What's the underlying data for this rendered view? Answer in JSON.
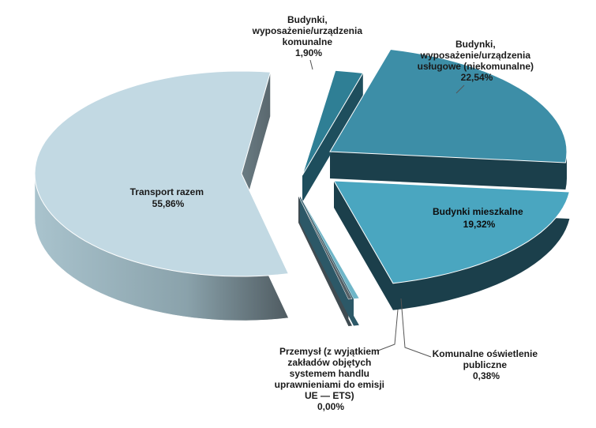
{
  "chart_data": {
    "type": "pie",
    "title": "",
    "legend": "none",
    "slices": [
      {
        "name_lines": [
          "Budynki,",
          "wyposażenie/urządzenia",
          "komunalne"
        ],
        "value": 1.9,
        "value_label": "1,90%",
        "color": "#2f7f95"
      },
      {
        "name_lines": [
          "Budynki,",
          "wyposażenie/urządzenia",
          "usługowe (niekomunalne)"
        ],
        "value": 22.54,
        "value_label": "22,54%",
        "color": "#3d8ea7"
      },
      {
        "name_lines": [
          "Budynki  mieszkalne"
        ],
        "value": 19.32,
        "value_label": "19,32%",
        "color": "#4aa6c0"
      },
      {
        "name_lines": [
          "Komunalne  oświetlenie",
          "publiczne"
        ],
        "value": 0.38,
        "value_label": "0,38%",
        "color": "#6fb6c8"
      },
      {
        "name_lines": [
          "Przemysł (z wyjątkiem",
          "zakładów objętych",
          "systemem handlu",
          "uprawnieniami do emisji",
          "UE — ETS)"
        ],
        "value": 0.0,
        "value_label": "0,00%",
        "color": "#556066"
      },
      {
        "name_lines": [
          "Transport razem"
        ],
        "value": 55.86,
        "value_label": "55,86%",
        "color": "#c2d9e3"
      }
    ]
  }
}
